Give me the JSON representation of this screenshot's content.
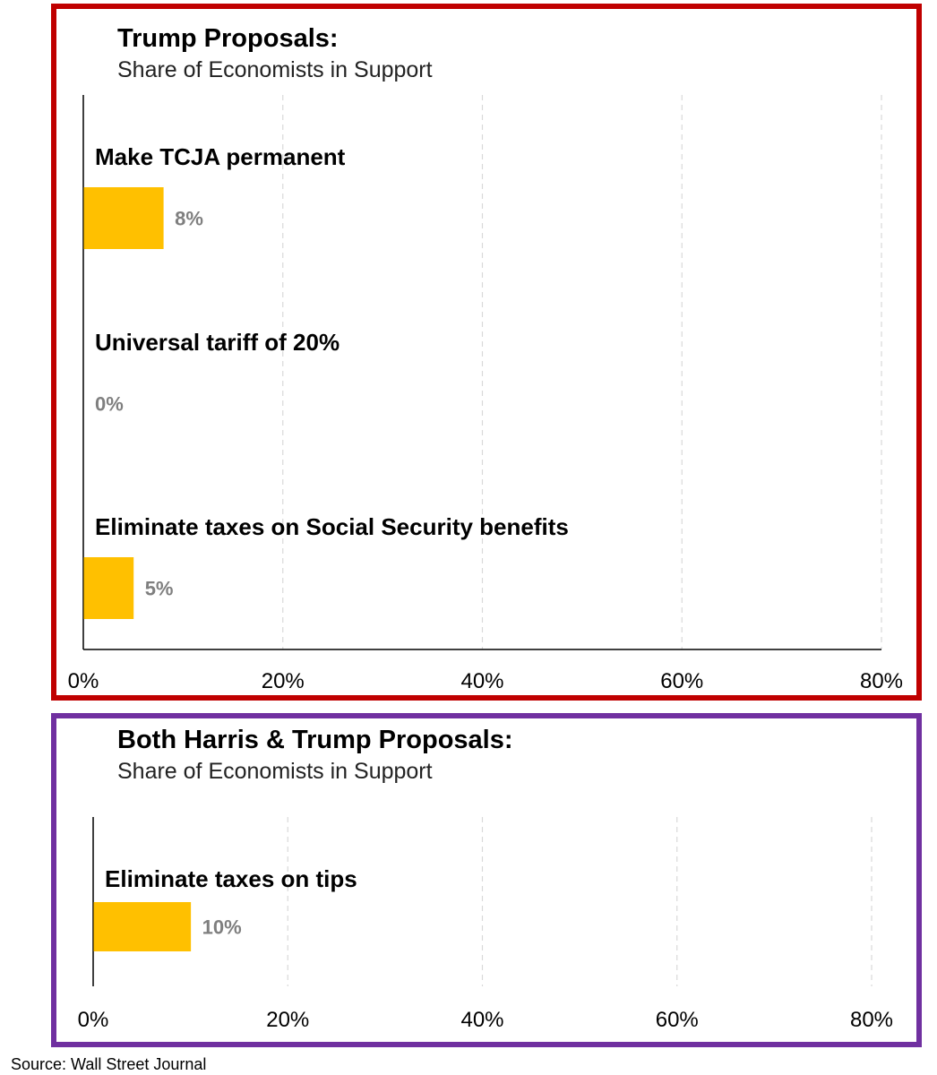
{
  "colors": {
    "trump_border": "#c00000",
    "both_border": "#7030a0",
    "bar": "#ffc000",
    "value_label": "#7f7f7f",
    "grid": "#d9d9d9"
  },
  "source": "Source: Wall Street Journal",
  "chart_data": [
    {
      "type": "bar",
      "orientation": "horizontal",
      "title": "Trump Proposals:",
      "subtitle": "Share of Economists in Support",
      "categories": [
        "Make TCJA permanent",
        "Universal tariff of 20%",
        "Eliminate taxes on Social Security benefits"
      ],
      "values": [
        8,
        0,
        5
      ],
      "value_labels": [
        "8%",
        "0%",
        "5%"
      ],
      "xlim": [
        0,
        80
      ],
      "xticks": [
        0,
        20,
        40,
        60,
        80
      ],
      "xtick_labels": [
        "0%",
        "20%",
        "40%",
        "60%",
        "80%"
      ],
      "grid": true
    },
    {
      "type": "bar",
      "orientation": "horizontal",
      "title": "Both Harris & Trump Proposals:",
      "subtitle": "Share of Economists in Support",
      "categories": [
        "Eliminate taxes on tips"
      ],
      "values": [
        10
      ],
      "value_labels": [
        "10%"
      ],
      "xlim": [
        0,
        80
      ],
      "xticks": [
        0,
        20,
        40,
        60,
        80
      ],
      "xtick_labels": [
        "0%",
        "20%",
        "40%",
        "60%",
        "80%"
      ],
      "grid": true
    }
  ]
}
